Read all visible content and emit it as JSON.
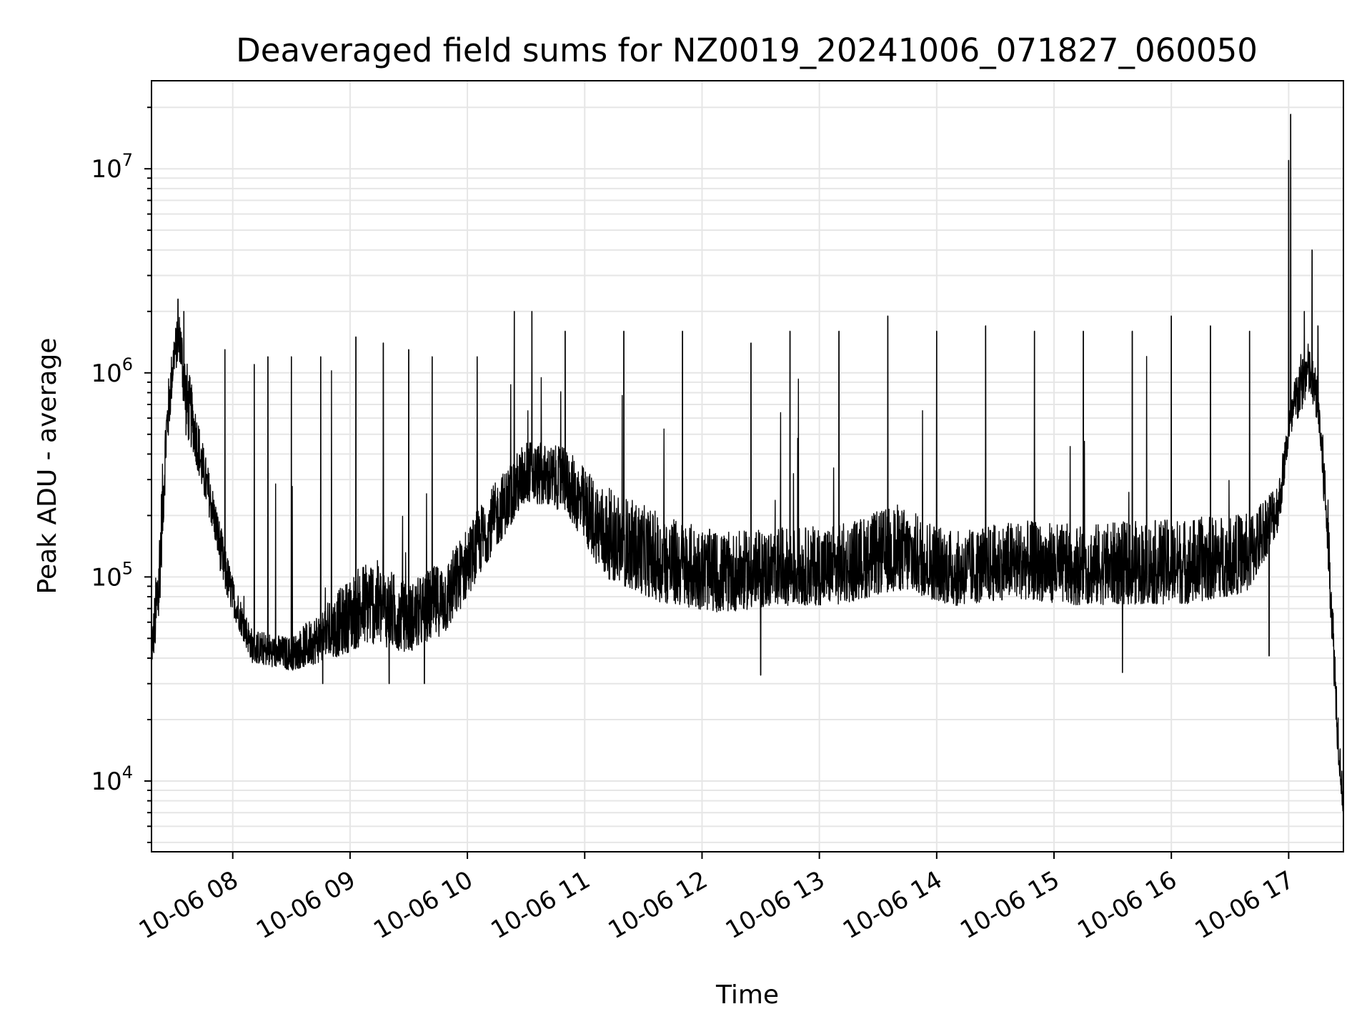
{
  "chart_data": {
    "type": "line",
    "title": "Deaveraged field sums for NZ0019_20241006_071827_060050",
    "xlabel": "Time",
    "ylabel": "Peak ADU - average",
    "yscale": "log",
    "grid": true,
    "xlim": [
      "2024-10-06 07:18:27",
      "2024-10-06 17:28:00"
    ],
    "ylim": [
      4500,
      27000000
    ],
    "x_ticks": [
      {
        "value": "2024-10-06 08:00",
        "label": "10-06 08"
      },
      {
        "value": "2024-10-06 09:00",
        "label": "10-06 09"
      },
      {
        "value": "2024-10-06 10:00",
        "label": "10-06 10"
      },
      {
        "value": "2024-10-06 11:00",
        "label": "10-06 11"
      },
      {
        "value": "2024-10-06 12:00",
        "label": "10-06 12"
      },
      {
        "value": "2024-10-06 13:00",
        "label": "10-06 13"
      },
      {
        "value": "2024-10-06 14:00",
        "label": "10-06 14"
      },
      {
        "value": "2024-10-06 15:00",
        "label": "10-06 15"
      },
      {
        "value": "2024-10-06 16:00",
        "label": "10-06 16"
      },
      {
        "value": "2024-10-06 17:00",
        "label": "10-06 17"
      }
    ],
    "y_ticks": [
      {
        "value": 10000,
        "base": "10",
        "exp": "4"
      },
      {
        "value": 100000,
        "base": "10",
        "exp": "5"
      },
      {
        "value": 1000000,
        "base": "10",
        "exp": "6"
      },
      {
        "value": 10000000,
        "base": "10",
        "exp": "7"
      }
    ],
    "series": [
      {
        "color": "#000000",
        "envelope": [
          {
            "x": "2024-10-06 07:18",
            "low": 33000,
            "high": 47000
          },
          {
            "x": "2024-10-06 07:22",
            "low": 40000,
            "high": 200000
          },
          {
            "x": "2024-10-06 07:26",
            "low": 300000,
            "high": 900000
          },
          {
            "x": "2024-10-06 07:30",
            "low": 900000,
            "high": 1800000
          },
          {
            "x": "2024-10-06 07:33",
            "low": 1000000,
            "high": 2300000
          },
          {
            "x": "2024-10-06 07:36",
            "low": 400000,
            "high": 1500000
          },
          {
            "x": "2024-10-06 07:40",
            "low": 350000,
            "high": 900000
          },
          {
            "x": "2024-10-06 07:45",
            "low": 220000,
            "high": 500000
          },
          {
            "x": "2024-10-06 07:50",
            "low": 150000,
            "high": 300000
          },
          {
            "x": "2024-10-06 07:55",
            "low": 80000,
            "high": 180000
          },
          {
            "x": "2024-10-06 08:00",
            "low": 60000,
            "high": 110000
          },
          {
            "x": "2024-10-06 08:10",
            "low": 35000,
            "high": 60000
          },
          {
            "x": "2024-10-06 08:30",
            "low": 32000,
            "high": 55000
          },
          {
            "x": "2024-10-06 08:50",
            "low": 34000,
            "high": 90000
          },
          {
            "x": "2024-10-06 09:10",
            "low": 38000,
            "high": 160000
          },
          {
            "x": "2024-10-06 09:30",
            "low": 36000,
            "high": 110000
          },
          {
            "x": "2024-10-06 09:50",
            "low": 45000,
            "high": 150000
          },
          {
            "x": "2024-10-06 10:10",
            "low": 100000,
            "high": 300000
          },
          {
            "x": "2024-10-06 10:30",
            "low": 200000,
            "high": 550000
          },
          {
            "x": "2024-10-06 10:50",
            "low": 180000,
            "high": 500000
          },
          {
            "x": "2024-10-06 11:10",
            "low": 80000,
            "high": 350000
          },
          {
            "x": "2024-10-06 11:40",
            "low": 60000,
            "high": 250000
          },
          {
            "x": "2024-10-06 12:10",
            "low": 55000,
            "high": 200000
          },
          {
            "x": "2024-10-06 12:40",
            "low": 60000,
            "high": 210000
          },
          {
            "x": "2024-10-06 13:10",
            "low": 60000,
            "high": 220000
          },
          {
            "x": "2024-10-06 13:40",
            "low": 70000,
            "high": 280000
          },
          {
            "x": "2024-10-06 14:10",
            "low": 60000,
            "high": 200000
          },
          {
            "x": "2024-10-06 14:40",
            "low": 65000,
            "high": 230000
          },
          {
            "x": "2024-10-06 15:10",
            "low": 60000,
            "high": 220000
          },
          {
            "x": "2024-10-06 15:40",
            "low": 60000,
            "high": 230000
          },
          {
            "x": "2024-10-06 16:10",
            "low": 60000,
            "high": 240000
          },
          {
            "x": "2024-10-06 16:40",
            "low": 70000,
            "high": 250000
          },
          {
            "x": "2024-10-06 16:55",
            "low": 150000,
            "high": 350000
          },
          {
            "x": "2024-10-06 17:00",
            "low": 400000,
            "high": 700000
          },
          {
            "x": "2024-10-06 17:05",
            "low": 500000,
            "high": 1400000
          },
          {
            "x": "2024-10-06 17:10",
            "low": 700000,
            "high": 1600000
          },
          {
            "x": "2024-10-06 17:15",
            "low": 500000,
            "high": 1100000
          },
          {
            "x": "2024-10-06 17:20",
            "low": 100000,
            "high": 300000
          },
          {
            "x": "2024-10-06 17:25",
            "low": 12000,
            "high": 30000
          },
          {
            "x": "2024-10-06 17:28",
            "low": 6000,
            "high": 9000
          }
        ],
        "spikes": [
          {
            "x": "2024-10-06 07:32",
            "y": 2300000
          },
          {
            "x": "2024-10-06 07:35",
            "y": 2000000
          },
          {
            "x": "2024-10-06 07:56",
            "y": 1300000
          },
          {
            "x": "2024-10-06 08:11",
            "y": 1100000
          },
          {
            "x": "2024-10-06 08:18",
            "y": 1200000
          },
          {
            "x": "2024-10-06 08:30",
            "y": 1200000
          },
          {
            "x": "2024-10-06 08:45",
            "y": 1200000
          },
          {
            "x": "2024-10-06 09:03",
            "y": 1500000
          },
          {
            "x": "2024-10-06 09:17",
            "y": 1400000
          },
          {
            "x": "2024-10-06 09:30",
            "y": 1300000
          },
          {
            "x": "2024-10-06 09:42",
            "y": 1200000
          },
          {
            "x": "2024-10-06 10:05",
            "y": 1200000
          },
          {
            "x": "2024-10-06 10:24",
            "y": 2000000
          },
          {
            "x": "2024-10-06 10:33",
            "y": 2000000
          },
          {
            "x": "2024-10-06 10:50",
            "y": 1600000
          },
          {
            "x": "2024-10-06 11:20",
            "y": 1600000
          },
          {
            "x": "2024-10-06 11:50",
            "y": 1600000
          },
          {
            "x": "2024-10-06 12:25",
            "y": 1400000
          },
          {
            "x": "2024-10-06 12:45",
            "y": 1600000
          },
          {
            "x": "2024-10-06 13:10",
            "y": 1600000
          },
          {
            "x": "2024-10-06 13:35",
            "y": 1900000
          },
          {
            "x": "2024-10-06 14:00",
            "y": 1600000
          },
          {
            "x": "2024-10-06 14:25",
            "y": 1700000
          },
          {
            "x": "2024-10-06 14:50",
            "y": 1600000
          },
          {
            "x": "2024-10-06 15:15",
            "y": 1600000
          },
          {
            "x": "2024-10-06 15:40",
            "y": 1600000
          },
          {
            "x": "2024-10-06 16:00",
            "y": 1900000
          },
          {
            "x": "2024-10-06 16:20",
            "y": 1700000
          },
          {
            "x": "2024-10-06 16:40",
            "y": 1600000
          },
          {
            "x": "2024-10-06 17:00",
            "y": 11000000
          },
          {
            "x": "2024-10-06 17:01",
            "y": 18500000
          },
          {
            "x": "2024-10-06 17:08",
            "y": 2000000
          },
          {
            "x": "2024-10-06 17:12",
            "y": 4000000
          },
          {
            "x": "2024-10-06 17:15",
            "y": 1700000
          }
        ],
        "dips": [
          {
            "x": "2024-10-06 08:46",
            "y": 30000
          },
          {
            "x": "2024-10-06 09:20",
            "y": 30000
          },
          {
            "x": "2024-10-06 09:38",
            "y": 30000
          },
          {
            "x": "2024-10-06 12:30",
            "y": 33000
          },
          {
            "x": "2024-10-06 15:35",
            "y": 34000
          },
          {
            "x": "2024-10-06 16:50",
            "y": 41000
          }
        ]
      }
    ]
  }
}
